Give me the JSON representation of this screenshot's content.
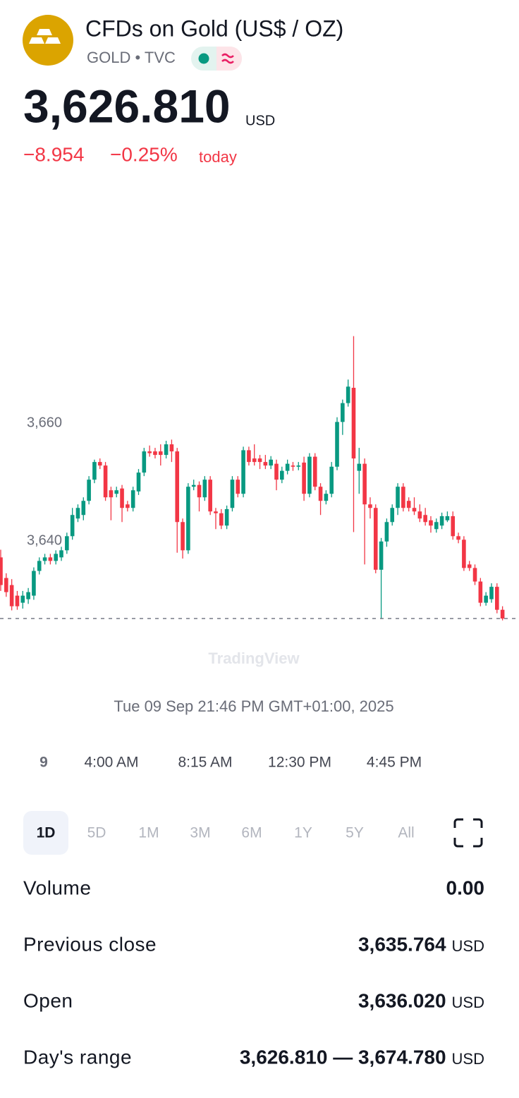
{
  "header": {
    "title": "CFDs on Gold (US$ / OZ)",
    "symbol": "GOLD • TVC",
    "price": "3,626.810",
    "currency": "USD",
    "change": "−8.954",
    "change_percent": "−0.25%",
    "change_period": "today"
  },
  "chart_data": {
    "type": "candlestick",
    "open": [
      3637.2,
      3633.7,
      3632.5,
      3630.7,
      3629.5,
      3630.1,
      3630.7,
      3634.9,
      3636.6,
      3637.2,
      3636.6,
      3637.2,
      3638.4,
      3640.8,
      3643.8,
      3644.4,
      3646.8,
      3650.4,
      3653.4,
      3652.8,
      3648.6,
      3648,
      3648.9,
      3646.2,
      3645.6,
      3648.4,
      3651.6,
      3655.2,
      3655.2,
      3655.2,
      3654.6,
      3656.4,
      3655.2,
      3643.2,
      3638.4,
      3649.2,
      3649.5,
      3647.4,
      3650.4,
      3645,
      3644.7,
      3642.6,
      3645.6,
      3650.4,
      3648,
      3655.4,
      3654,
      3654,
      3653.4,
      3652.8,
      3653.1,
      3650.4,
      3651.9,
      3652.8,
      3652.6,
      3653.3,
      3648,
      3654.3,
      3649.2,
      3646.8,
      3648,
      3652.6,
      3660.2,
      3663.4,
      3666,
      3651.9,
      3653.1,
      3646.2,
      3645.6,
      3635.1,
      3639.9,
      3643.2,
      3645.6,
      3649.2,
      3646.8,
      3645.6,
      3645,
      3644.4,
      3643.5,
      3642,
      3642.6,
      3643.5,
      3644.2,
      3640.8,
      3640.2,
      3636,
      3635.4,
      3633.1,
      3629.5,
      3630.1,
      3632.2,
      3628.3
    ],
    "high": [
      3638.5,
      3634.5,
      3633.5,
      3631.5,
      3631.5,
      3632,
      3635.5,
      3637.2,
      3637.8,
      3637.8,
      3638.4,
      3639,
      3641.4,
      3645.6,
      3646.2,
      3647.4,
      3651,
      3653.8,
      3654,
      3653.4,
      3649.2,
      3649.2,
      3649.5,
      3646.8,
      3649.2,
      3652.2,
      3655.8,
      3656.2,
      3655.8,
      3656.4,
      3657,
      3657.2,
      3655.8,
      3643.8,
      3649.8,
      3650.4,
      3650.1,
      3651,
      3651,
      3645.6,
      3645.4,
      3646,
      3651,
      3651,
      3656,
      3656,
      3656.4,
      3654.6,
      3654.6,
      3654.4,
      3653.8,
      3652.6,
      3653.8,
      3653.4,
      3653.4,
      3654.3,
      3654.9,
      3654.9,
      3649.8,
      3648.6,
      3653.4,
      3661,
      3664,
      3667.4,
      3674.78,
      3655.8,
      3654,
      3647.4,
      3646.2,
      3640.5,
      3643.8,
      3646.2,
      3649.8,
      3649.8,
      3647.4,
      3647.4,
      3646.2,
      3645.6,
      3644.2,
      3643.8,
      3644.8,
      3645,
      3645,
      3641.4,
      3640.8,
      3636.6,
      3636,
      3633.7,
      3631.3,
      3632.8,
      3632.8,
      3628.9
    ],
    "low": [
      3631.5,
      3630.5,
      3628.2,
      3628.3,
      3628.5,
      3629.3,
      3630,
      3634.3,
      3636,
      3636,
      3636,
      3636.6,
      3637.8,
      3640.2,
      3643.2,
      3643.5,
      3646.2,
      3649.8,
      3652.2,
      3646.8,
      3643.5,
      3647.4,
      3643.2,
      3645,
      3645,
      3647.8,
      3651,
      3654.3,
      3654,
      3652.8,
      3654,
      3653.4,
      3638,
      3637,
      3637.8,
      3648.6,
      3645,
      3646.8,
      3644.4,
      3642,
      3642,
      3642,
      3645,
      3647.4,
      3647.4,
      3652.8,
      3652.8,
      3652.2,
      3652.2,
      3652.2,
      3648.6,
      3649.8,
      3651.3,
      3651.9,
      3652,
      3646.8,
      3647.4,
      3648.6,
      3644.4,
      3646.2,
      3647.4,
      3652,
      3658,
      3662.8,
      3641.5,
      3648,
      3636,
      3643.8,
      3634.5,
      3626.8,
      3639,
      3642.6,
      3644.4,
      3645,
      3645,
      3644.4,
      3643.2,
      3642.6,
      3641.4,
      3641.4,
      3642,
      3643.2,
      3640.2,
      3639.6,
      3634.9,
      3634.9,
      3632.5,
      3628.9,
      3629,
      3629.5,
      3627.7,
      3626.5
    ],
    "close": [
      3632.5,
      3631.3,
      3628.9,
      3628.9,
      3630.7,
      3631.3,
      3634.9,
      3636.6,
      3637.2,
      3636.6,
      3637.8,
      3638.4,
      3640.8,
      3644.4,
      3645.6,
      3646.8,
      3650.4,
      3653.4,
      3652.8,
      3647.4,
      3647.4,
      3648.6,
      3645.6,
      3645.6,
      3648.6,
      3651.6,
      3655.2,
      3654.9,
      3654.6,
      3654.6,
      3656.4,
      3655.2,
      3643.2,
      3638.4,
      3649.2,
      3649.5,
      3647.4,
      3650.4,
      3645,
      3644.7,
      3642.6,
      3645.4,
      3650.4,
      3648,
      3655.4,
      3653.4,
      3653.4,
      3653.4,
      3652.8,
      3653.8,
      3650.4,
      3651.9,
      3653.1,
      3652.6,
      3652.8,
      3648,
      3654.3,
      3649.2,
      3646.8,
      3648,
      3652.6,
      3660.2,
      3663.4,
      3666.2,
      3654,
      3653.1,
      3646.2,
      3645.6,
      3635.1,
      3639.9,
      3643.2,
      3645.6,
      3649.2,
      3645.6,
      3645.6,
      3645,
      3643.8,
      3643.2,
      3642.6,
      3643.2,
      3644.2,
      3644.2,
      3640.8,
      3640.2,
      3635.4,
      3635.4,
      3633.1,
      3629.5,
      3630.7,
      3632.2,
      3628.3,
      3626.81
    ],
    "up_color": "#089981",
    "down_color": "#f23645",
    "ylim": [
      3624.07,
      3701.92
    ],
    "yticks": [
      {
        "value": 3660,
        "label": "3,660"
      },
      {
        "value": 3640,
        "label": "3,640"
      }
    ],
    "xtick_labels": [
      "9",
      "4:00 AM",
      "8:15 AM",
      "12:30 PM",
      "4:45 PM"
    ],
    "watermark": "TradingView",
    "crosshair_label": "Tue 09 Sep 21:46 PM GMT+01:00, 2025"
  },
  "ranges": {
    "options": [
      "1D",
      "5D",
      "1M",
      "3M",
      "6M",
      "1Y",
      "5Y",
      "All"
    ],
    "selected": 0
  },
  "stats": [
    {
      "label": "Volume",
      "value": "0.00"
    },
    {
      "label": "Previous close",
      "value": "3,635.764",
      "unit": "USD"
    },
    {
      "label": "Open",
      "value": "3,636.020",
      "unit": "USD"
    },
    {
      "label": "Day's range",
      "value": "3,626.810 — 3,674.780",
      "unit": "USD"
    }
  ]
}
